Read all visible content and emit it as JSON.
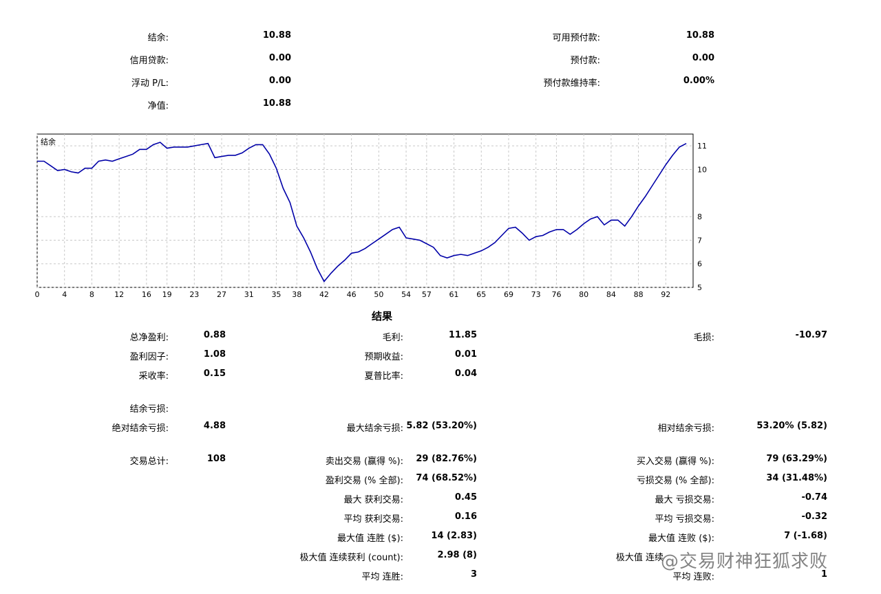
{
  "summary": {
    "balance_label": "结余:",
    "balance_value": "10.88",
    "credit_label": "信用贷款:",
    "credit_value": "0.00",
    "floating_label": "浮动 P/L:",
    "floating_value": "0.00",
    "equity_label": "净值:",
    "equity_value": "10.88",
    "free_margin_label": "可用预付款:",
    "free_margin_value": "10.88",
    "margin_label": "预付款:",
    "margin_value": "0.00",
    "margin_level_label": "预付款维持率:",
    "margin_level_value": "0.00%"
  },
  "chart_data": {
    "type": "line",
    "title": "结余",
    "xlabel": "",
    "ylabel": "",
    "xlim": [
      0,
      96
    ],
    "ylim": [
      5,
      11.5
    ],
    "x_ticks": [
      0,
      4,
      8,
      12,
      16,
      19,
      23,
      27,
      31,
      35,
      38,
      42,
      46,
      50,
      54,
      57,
      61,
      65,
      69,
      73,
      76,
      80,
      84,
      88,
      92
    ],
    "y_ticks": [
      5,
      6,
      7,
      8,
      10,
      11
    ],
    "grid": true,
    "series": [
      {
        "name": "",
        "color": "#0000a8",
        "x": [
          0,
          1,
          2,
          3,
          4,
          5,
          6,
          7,
          8,
          9,
          10,
          11,
          12,
          13,
          14,
          15,
          16,
          17,
          18,
          19,
          20,
          21,
          22,
          23,
          24,
          25,
          26,
          27,
          28,
          29,
          30,
          31,
          32,
          33,
          34,
          35,
          36,
          37,
          38,
          39,
          40,
          41,
          42,
          43,
          44,
          45,
          46,
          47,
          48,
          49,
          50,
          51,
          52,
          53,
          54,
          55,
          56,
          57,
          58,
          59,
          60,
          61,
          62,
          63,
          64,
          65,
          66,
          67,
          68,
          69,
          70,
          71,
          72,
          73,
          74,
          75,
          76,
          77,
          78,
          79,
          80,
          81,
          82,
          83,
          84,
          85,
          86,
          87,
          88,
          89,
          90,
          91,
          92,
          93,
          94,
          95
        ],
        "y": [
          10.35,
          10.35,
          10.15,
          9.95,
          10.0,
          9.9,
          9.85,
          10.05,
          10.05,
          10.35,
          10.4,
          10.35,
          10.45,
          10.55,
          10.65,
          10.85,
          10.85,
          11.05,
          11.15,
          10.9,
          10.95,
          10.95,
          10.95,
          11.0,
          11.05,
          11.1,
          10.5,
          10.55,
          10.6,
          10.6,
          10.7,
          10.9,
          11.05,
          11.05,
          10.65,
          10.05,
          9.2,
          8.6,
          7.6,
          7.1,
          6.5,
          5.8,
          5.25,
          5.6,
          5.9,
          6.15,
          6.45,
          6.5,
          6.65,
          6.85,
          7.05,
          7.25,
          7.45,
          7.55,
          7.1,
          7.05,
          7.0,
          6.85,
          6.7,
          6.35,
          6.25,
          6.35,
          6.4,
          6.35,
          6.45,
          6.55,
          6.7,
          6.9,
          7.2,
          7.5,
          7.55,
          7.3,
          7.0,
          7.15,
          7.2,
          7.35,
          7.45,
          7.45,
          7.25,
          7.45,
          7.7,
          7.9,
          8.0,
          7.65,
          7.85,
          7.85,
          7.6,
          8.0,
          8.45,
          8.85,
          9.3,
          9.75,
          10.2,
          10.6,
          10.95,
          11.1
        ]
      }
    ]
  },
  "results": {
    "title": "结果",
    "net_profit_label": "总净盈利:",
    "net_profit_value": "0.88",
    "gross_profit_label": "毛利:",
    "gross_profit_value": "11.85",
    "gross_loss_label": "毛损:",
    "gross_loss_value": "-10.97",
    "profit_factor_label": "盈利因子:",
    "profit_factor_value": "1.08",
    "expected_payoff_label": "预期收益:",
    "expected_payoff_value": "0.01",
    "recovery_factor_label": "采收率:",
    "recovery_factor_value": "0.15",
    "sharpe_label": "夏普比率:",
    "sharpe_value": "0.04",
    "balance_drawdown_label": "结余亏损:",
    "abs_drawdown_label": "绝对结余亏损:",
    "abs_drawdown_value": "4.88",
    "max_drawdown_label": "最大结余亏损:",
    "max_drawdown_value": "5.82 (53.20%)",
    "rel_drawdown_label": "相对结余亏损:",
    "rel_drawdown_value": "53.20% (5.82)",
    "total_trades_label": "交易总计:",
    "total_trades_value": "108",
    "short_trades_label": "卖出交易 (赢得 %):",
    "short_trades_value": "29 (82.76%)",
    "long_trades_label": "买入交易 (赢得 %):",
    "long_trades_value": "79 (63.29%)",
    "profit_trades_label": "盈利交易 (% 全部):",
    "profit_trades_value": "74 (68.52%)",
    "loss_trades_label": "亏损交易 (% 全部):",
    "loss_trades_value": "34 (31.48%)",
    "largest_profit_label": "最大 获利交易:",
    "largest_profit_value": "0.45",
    "largest_loss_label": "最大 亏损交易:",
    "largest_loss_value": "-0.74",
    "avg_profit_label": "平均 获利交易:",
    "avg_profit_value": "0.16",
    "avg_loss_label": "平均 亏损交易:",
    "avg_loss_value": "-0.32",
    "max_cons_wins_label": "最大值 连胜 ($):",
    "max_cons_wins_value": "14 (2.83)",
    "max_cons_losses_label": "最大值 连败 ($):",
    "max_cons_losses_value": "7 (-1.68)",
    "max_cons_profit_label": "极大值 连续获利 (count):",
    "max_cons_profit_value": "2.98 (8)",
    "max_cons_loss_label": "极大值 连续",
    "avg_cons_wins_label": "平均 连胜:",
    "avg_cons_wins_value": "3",
    "avg_cons_losses_label": "平均 连败:",
    "avg_cons_losses_value": "1"
  },
  "watermark": {
    "text": "@交易财神狂狐求败"
  }
}
